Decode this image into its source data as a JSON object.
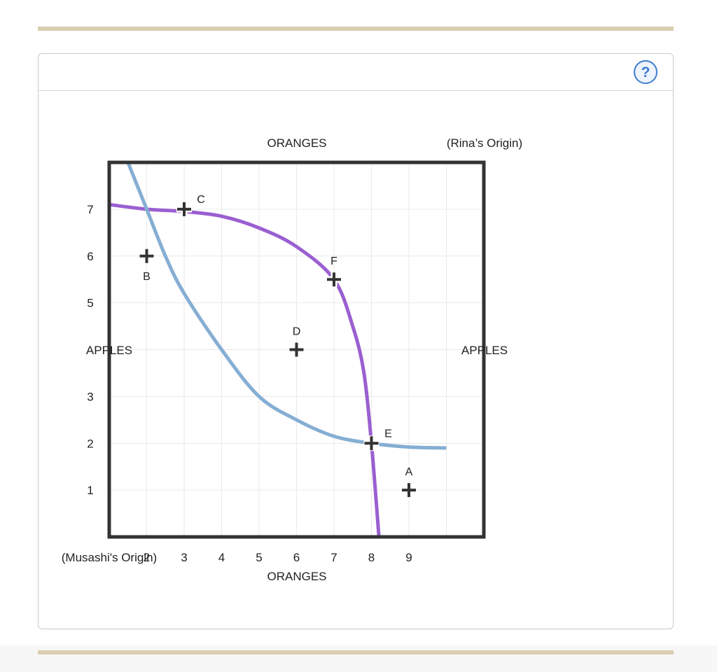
{
  "help": {
    "icon": "question-mark-icon",
    "label": "?"
  },
  "colors": {
    "rule": "#d9ceaf",
    "musashi_curve": "#9a5fd1",
    "rina_curve": "#85aed3",
    "frame": "#333333",
    "help": "#3f7ad1"
  },
  "chart_data": {
    "type": "line",
    "subtype": "edgeworth-box",
    "x_axis": {
      "label": "ORANGES",
      "ticks": [
        2,
        3,
        4,
        5,
        6,
        7,
        8,
        9
      ],
      "range": [
        1,
        11
      ],
      "origin_label": "(Musashi's Origin)"
    },
    "top_axis": {
      "label": "ORANGES",
      "origin_label": "(Rina’s Origin)"
    },
    "y_axis": {
      "label": "APPLES",
      "ticks": [
        1,
        2,
        3,
        5,
        6,
        7
      ],
      "range": [
        0,
        8
      ]
    },
    "right_axis": {
      "label": "APPLES"
    },
    "grid": true,
    "series": [
      {
        "color": "#9a5fd1",
        "points": [
          [
            1,
            7.1
          ],
          [
            2,
            7.0
          ],
          [
            3,
            6.95
          ],
          [
            4,
            6.85
          ],
          [
            5,
            6.6
          ],
          [
            6,
            6.2
          ],
          [
            7,
            5.5
          ],
          [
            7.5,
            4.5
          ],
          [
            7.8,
            3.5
          ],
          [
            8.0,
            2.0
          ],
          [
            8.2,
            0
          ]
        ]
      },
      {
        "color": "#85aed3",
        "points": [
          [
            1.5,
            8.0
          ],
          [
            2.0,
            7.0
          ],
          [
            2.5,
            6.0
          ],
          [
            3.0,
            5.2
          ],
          [
            4.0,
            4.0
          ],
          [
            5.0,
            3.0
          ],
          [
            6.0,
            2.5
          ],
          [
            7.0,
            2.15
          ],
          [
            8.0,
            2.0
          ],
          [
            9.0,
            1.92
          ],
          [
            10.0,
            1.9
          ]
        ]
      }
    ],
    "points": [
      {
        "label": "A",
        "x": 9,
        "y": 1,
        "label_pos": "above"
      },
      {
        "label": "B",
        "x": 2,
        "y": 6,
        "label_pos": "below"
      },
      {
        "label": "C",
        "x": 3,
        "y": 7,
        "label_pos": "upper-right"
      },
      {
        "label": "D",
        "x": 6,
        "y": 4,
        "label_pos": "above"
      },
      {
        "label": "E",
        "x": 8,
        "y": 2,
        "label_pos": "upper-right"
      },
      {
        "label": "F",
        "x": 7,
        "y": 5.5,
        "label_pos": "above"
      }
    ]
  }
}
